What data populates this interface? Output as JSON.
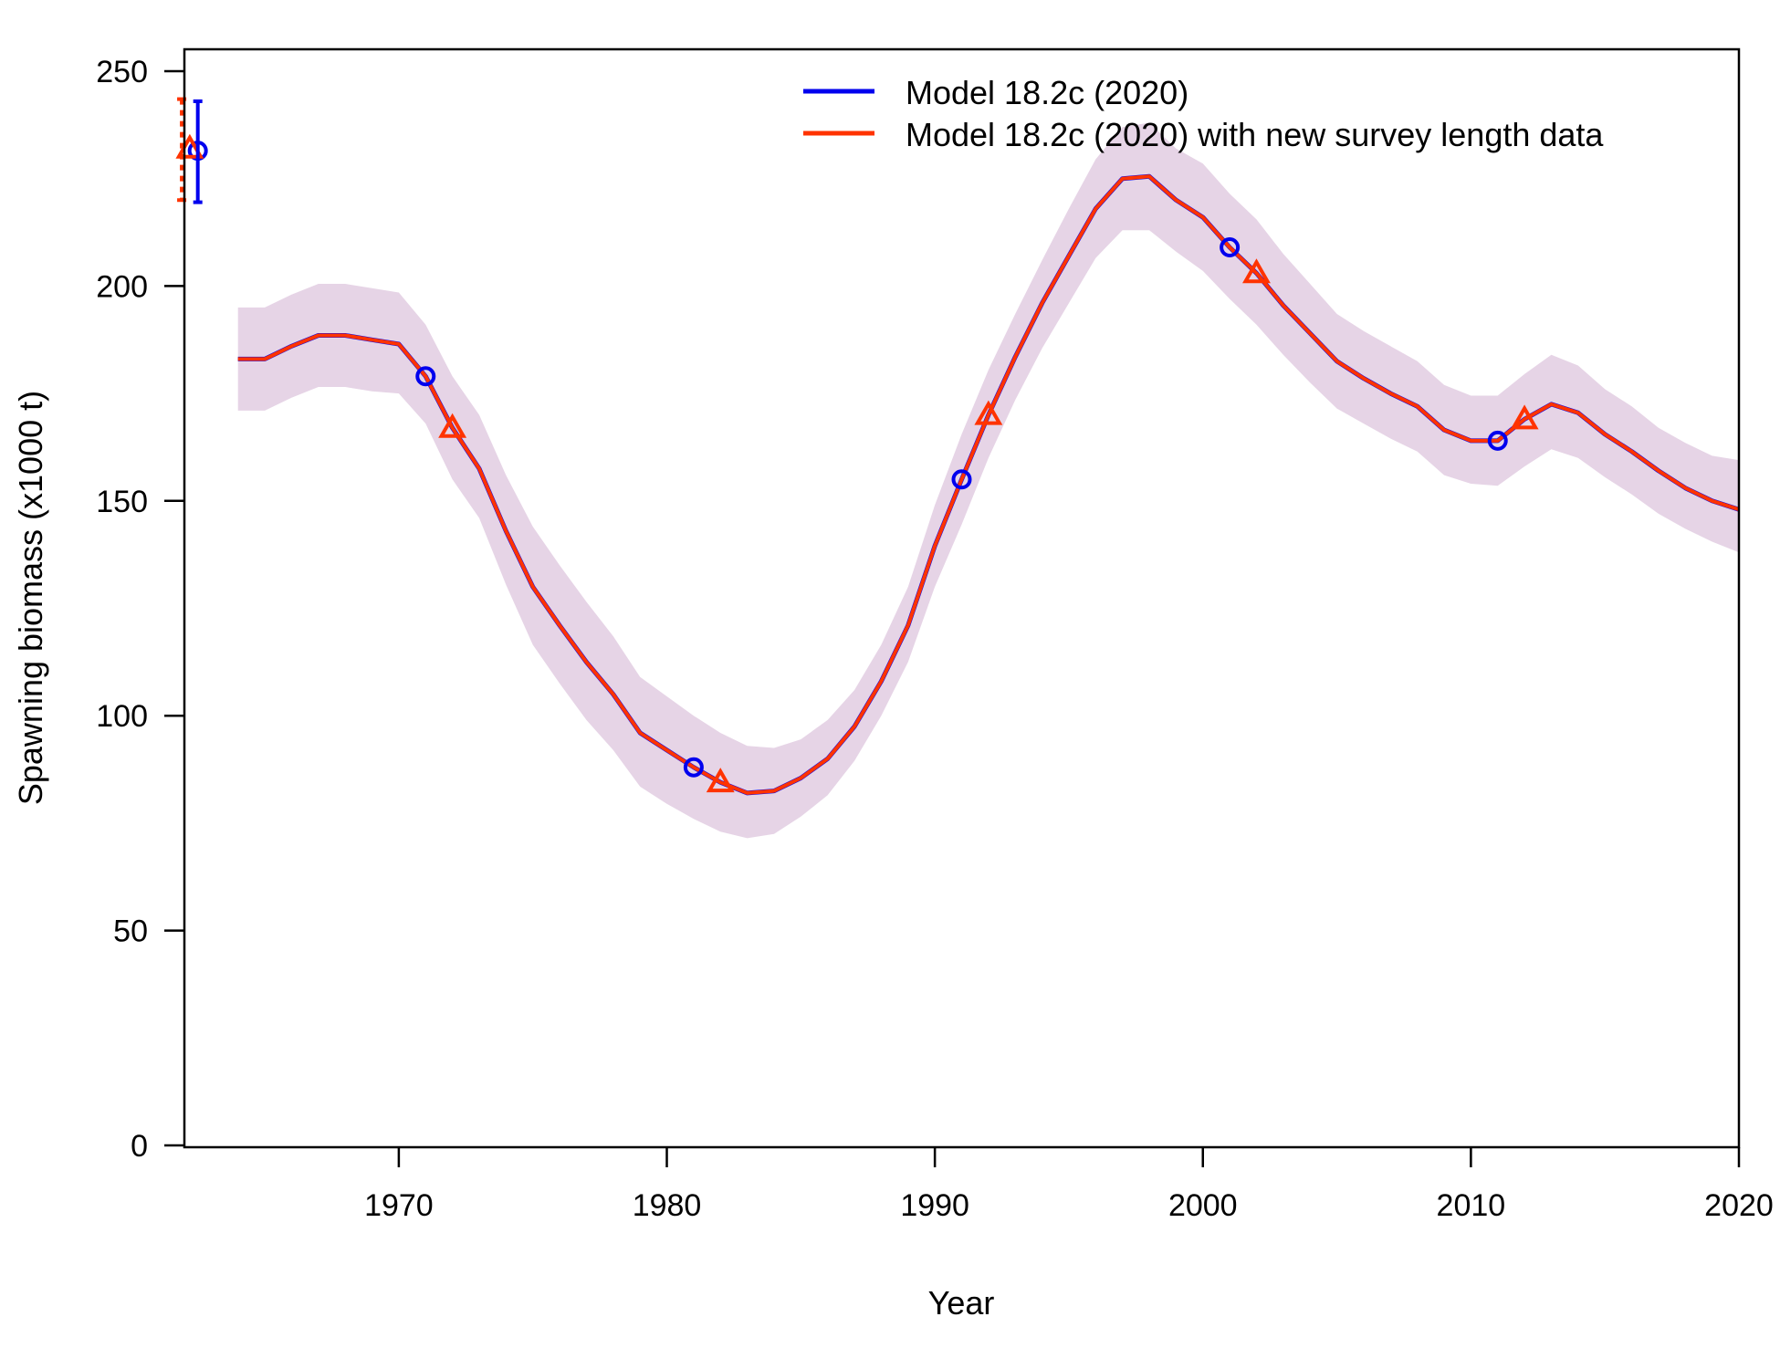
{
  "chart_data": {
    "type": "line",
    "xlabel": "Year",
    "ylabel": "Spawning biomass (x1000 t)",
    "xlim": [
      1962,
      2020
    ],
    "ylim": [
      0,
      250
    ],
    "x_ticks": [
      "1970",
      "1980",
      "1990",
      "2000",
      "2010",
      "2020"
    ],
    "y_ticks": [
      "0",
      "50",
      "100",
      "150",
      "200",
      "250"
    ],
    "legend_position": "top-right",
    "grid": false,
    "colors": {
      "series_a": "#0000ee",
      "series_b": "#ff3300",
      "band": "#e6d4e6"
    },
    "x": [
      1964,
      1965,
      1966,
      1967,
      1968,
      1969,
      1970,
      1971,
      1972,
      1973,
      1974,
      1975,
      1976,
      1977,
      1978,
      1979,
      1980,
      1981,
      1982,
      1983,
      1984,
      1985,
      1986,
      1987,
      1988,
      1989,
      1990,
      1991,
      1992,
      1993,
      1994,
      1995,
      1996,
      1997,
      1998,
      1999,
      2000,
      2001,
      2002,
      2003,
      2004,
      2005,
      2006,
      2007,
      2008,
      2009,
      2010,
      2011,
      2012,
      2013,
      2014,
      2015,
      2016,
      2017,
      2018,
      2019,
      2020
    ],
    "series": [
      {
        "name": "Model 18.2c (2020)",
        "values": [
          183,
          183,
          186,
          188.5,
          188.5,
          187.5,
          186.5,
          179,
          167,
          157.5,
          143,
          130,
          121,
          112.5,
          105,
          96,
          92,
          88,
          84.5,
          82,
          82.5,
          85.5,
          90,
          97.5,
          108,
          121,
          139.5,
          155,
          170,
          183.5,
          196,
          207,
          218,
          225,
          225.5,
          220,
          216,
          209,
          203,
          195.5,
          189,
          182.5,
          178.5,
          175,
          172,
          166.5,
          164,
          164,
          169,
          172.5,
          170.5,
          165.5,
          161.5,
          157,
          153,
          150,
          148
        ]
      },
      {
        "name": "Model 18.2c (2020) with new survey length data",
        "values": [
          183,
          183,
          186,
          188.5,
          188.5,
          187.5,
          186.5,
          179,
          167,
          157.5,
          143,
          130,
          121,
          112.5,
          105,
          96,
          92,
          88,
          84.5,
          82,
          82.5,
          85.5,
          90,
          97.5,
          108,
          121,
          139.5,
          155,
          170,
          183.5,
          196,
          207,
          218,
          225,
          225.5,
          220,
          216,
          209,
          203,
          195.5,
          189,
          182.5,
          178.5,
          175,
          172,
          166.5,
          164,
          164,
          169,
          172.5,
          170.5,
          165.5,
          161.5,
          157,
          153,
          150,
          148
        ]
      }
    ],
    "band": {
      "lower": [
        171,
        171,
        174,
        176.5,
        176.5,
        175.5,
        175,
        168,
        155,
        146,
        130.5,
        116.5,
        107.5,
        99,
        92,
        83.5,
        79.5,
        76,
        73,
        71.5,
        72.5,
        76.5,
        81.5,
        89.5,
        100,
        112.5,
        130,
        144.5,
        160,
        173.5,
        185.5,
        196,
        206.5,
        213,
        213,
        208,
        203.5,
        197,
        191,
        184,
        177.5,
        171.5,
        168,
        164.5,
        161.5,
        156,
        154,
        153.5,
        158,
        162,
        160,
        155.5,
        151.5,
        147,
        143.5,
        140.5,
        138
      ],
      "upper": [
        195,
        195,
        198,
        200.5,
        200.5,
        199.5,
        198.5,
        191,
        179,
        170,
        156,
        144,
        135,
        126.5,
        118.5,
        109,
        104.5,
        100,
        96,
        93,
        92.5,
        94.5,
        99,
        106,
        116.5,
        130,
        149,
        165.5,
        180.5,
        193.5,
        206,
        218,
        229.5,
        237,
        238,
        232,
        228.5,
        221.5,
        215.5,
        207.5,
        200.5,
        193.5,
        189.5,
        186,
        182.5,
        177,
        174.5,
        174.5,
        179.5,
        184,
        181.5,
        176,
        172,
        167,
        163.5,
        160.5,
        159.5
      ]
    },
    "markers": [
      {
        "series": 0,
        "shape": "circle",
        "points": [
          [
            1962.5,
            231.5
          ],
          [
            1971,
            179
          ],
          [
            1981,
            88
          ],
          [
            1991,
            155
          ],
          [
            2001,
            209
          ],
          [
            2011,
            164
          ]
        ]
      },
      {
        "series": 1,
        "shape": "triangle",
        "points": [
          [
            1962.2,
            232
          ],
          [
            1972,
            167
          ],
          [
            1982,
            84.5
          ],
          [
            1992,
            170
          ],
          [
            2002,
            203
          ],
          [
            2012,
            169
          ]
        ]
      }
    ],
    "initial_estimates": [
      {
        "series": 0,
        "x": 1962.5,
        "value": 231.5,
        "low": 219.5,
        "high": 243
      },
      {
        "series": 1,
        "x": 1961.9,
        "value": 232,
        "low": 220,
        "high": 243.5
      }
    ]
  }
}
